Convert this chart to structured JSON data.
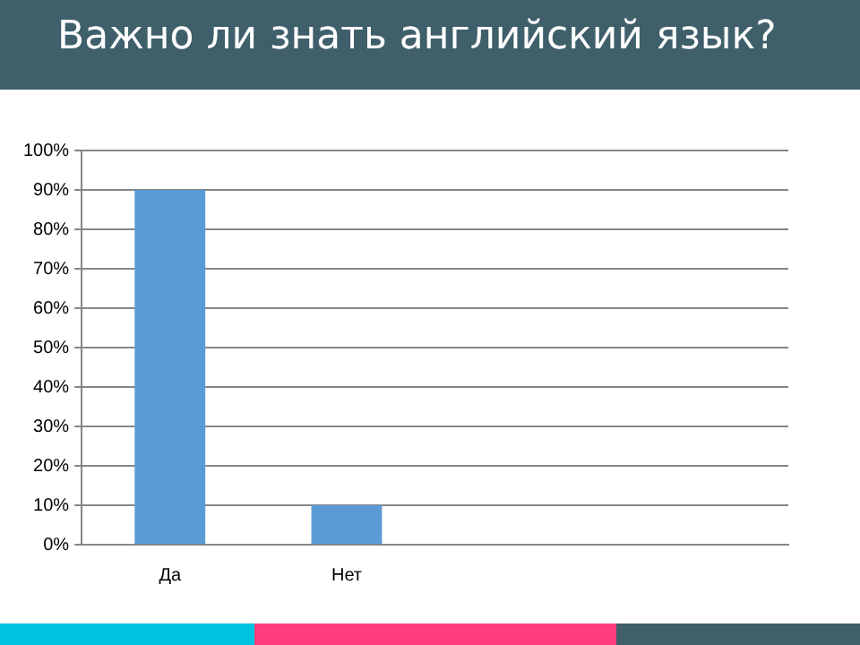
{
  "chart_data": {
    "type": "bar",
    "title": "Важно ли знать английский язык?",
    "categories": [
      "Да",
      "Нет",
      null,
      null
    ],
    "values": [
      90,
      10,
      null,
      null
    ],
    "color": "#5b9bd5",
    "ylim": [
      0,
      100
    ],
    "yticks": [
      {
        "value": 0,
        "label": "0%"
      },
      {
        "value": 10,
        "label": "10%"
      },
      {
        "value": 20,
        "label": "20%"
      },
      {
        "value": 30,
        "label": "30%"
      },
      {
        "value": 40,
        "label": "40%"
      },
      {
        "value": 50,
        "label": "50%"
      },
      {
        "value": 60,
        "label": "60%"
      },
      {
        "value": 70,
        "label": "70%"
      },
      {
        "value": 80,
        "label": "80%"
      },
      {
        "value": 90,
        "label": "90%"
      },
      {
        "value": 100,
        "label": "100%"
      }
    ],
    "grid": "y",
    "legend": false
  }
}
